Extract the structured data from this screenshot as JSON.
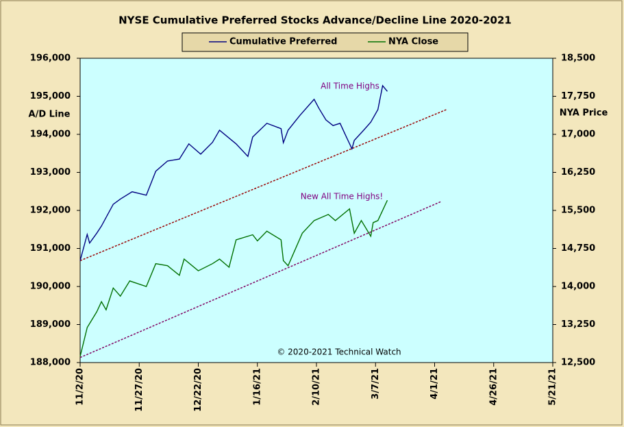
{
  "chart_data": {
    "type": "line",
    "title": "NYSE Cumulative  Preferred Stocks Advance/Decline  Line 2020-2021",
    "y_label": "A/D Line",
    "y2_label": "NYA Price",
    "annotations": [
      "All Time Highs",
      "New All Time Highs!",
      "© 2020-2021  Technical  Watch"
    ],
    "xlim": [
      "11/2/20",
      "5/21/21"
    ],
    "xticks": [
      "11/2/20",
      "11/27/20",
      "12/22/20",
      "1/16/21",
      "2/10/21",
      "3/7/21",
      "4/1/21",
      "4/26/21",
      "5/21/21"
    ],
    "ylim": [
      188000,
      196000
    ],
    "yticks": [
      {
        "value": 188000,
        "label": "188,000"
      },
      {
        "value": 189000,
        "label": "189,000"
      },
      {
        "value": 190000,
        "label": "190,000"
      },
      {
        "value": 191000,
        "label": "191,000"
      },
      {
        "value": 192000,
        "label": "192,000"
      },
      {
        "value": 193000,
        "label": "193,000"
      },
      {
        "value": 194000,
        "label": "194,000"
      },
      {
        "value": 195000,
        "label": "195,000"
      },
      {
        "value": 196000,
        "label": "196,000"
      }
    ],
    "y2lim": [
      12500,
      18500
    ],
    "y2ticks": [
      {
        "value": 12500,
        "label": "12,500"
      },
      {
        "value": 13250,
        "label": "13,250"
      },
      {
        "value": 14000,
        "label": "14,000"
      },
      {
        "value": 14750,
        "label": "14,750"
      },
      {
        "value": 15500,
        "label": "15,500"
      },
      {
        "value": 16250,
        "label": "16,250"
      },
      {
        "value": 17000,
        "label": "17,000"
      },
      {
        "value": 17750,
        "label": "17,750"
      },
      {
        "value": 18500,
        "label": "18,500"
      }
    ],
    "series": [
      {
        "name": "Cumulative Preferred",
        "color": "#000080",
        "x": [
          "11/2/20",
          "11/5/20",
          "11/6/20",
          "11/9/20",
          "11/11/20",
          "11/16/20",
          "11/19/20",
          "11/24/20",
          "11/30/20",
          "12/4/20",
          "12/9/20",
          "12/14/20",
          "12/18/20",
          "12/23/20",
          "12/28/20",
          "12/31/20",
          "1/7/21",
          "1/12/21",
          "1/14/21",
          "1/20/21",
          "1/26/21",
          "1/27/21",
          "1/29/21",
          "2/3/21",
          "2/9/21",
          "2/11/21",
          "2/14/21",
          "2/17/21",
          "2/20/21",
          "2/22/21",
          "2/25/21",
          "2/26/21",
          "3/2/21",
          "3/5/21",
          "3/8/21",
          "3/10/21",
          "3/12/21"
        ],
        "values": [
          190680,
          191370,
          191140,
          191400,
          191590,
          192160,
          192300,
          192490,
          192400,
          193030,
          193300,
          193350,
          193750,
          193480,
          193790,
          194110,
          193750,
          193420,
          193930,
          194290,
          194150,
          193780,
          194110,
          194500,
          194920,
          194690,
          194380,
          194230,
          194290,
          194020,
          193620,
          193840,
          194110,
          194320,
          194650,
          195280,
          195130
        ]
      },
      {
        "name": "NYA Close",
        "color": "#007000",
        "axis": "y2",
        "x": [
          "11/2/20",
          "11/5/20",
          "11/9/20",
          "11/11/20",
          "11/13/20",
          "11/16/20",
          "11/19/20",
          "11/23/20",
          "11/30/20",
          "12/4/20",
          "12/9/20",
          "12/14/20",
          "12/16/20",
          "12/22/20",
          "12/28/20",
          "12/31/20",
          "1/4/21",
          "1/7/21",
          "1/14/21",
          "1/16/21",
          "1/20/21",
          "1/26/21",
          "1/27/21",
          "1/29/21",
          "2/4/21",
          "2/9/21",
          "2/15/21",
          "2/18/21",
          "2/24/21",
          "2/26/21",
          "3/1/21",
          "3/5/21",
          "3/6/21",
          "3/8/21",
          "3/12/21"
        ],
        "values": [
          12620,
          13190,
          13500,
          13700,
          13540,
          13970,
          13810,
          14110,
          14000,
          14450,
          14410,
          14220,
          14540,
          14310,
          14450,
          14540,
          14380,
          14920,
          15020,
          14900,
          15090,
          14920,
          14510,
          14410,
          15050,
          15300,
          15420,
          15300,
          15530,
          15050,
          15300,
          14990,
          15260,
          15300,
          15700
        ]
      }
    ],
    "trendlines": [
      {
        "color": "#990000",
        "x": [
          "11/2/20",
          "4/6/21"
        ],
        "values": [
          190680,
          194650
        ]
      },
      {
        "color": "#800060",
        "axis": "y2",
        "x": [
          "11/2/20",
          "4/4/21"
        ],
        "values": [
          12600,
          15680
        ]
      }
    ]
  }
}
